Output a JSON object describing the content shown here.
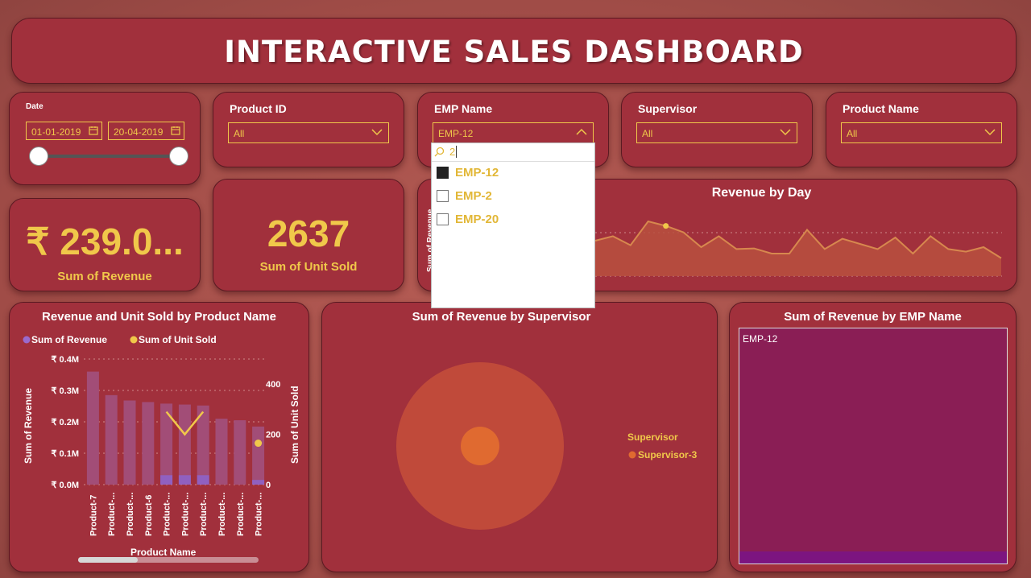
{
  "header": {
    "title": "INTERACTIVE SALES DASHBOARD"
  },
  "date_slicer": {
    "title": "Date",
    "start": "01-01-2019",
    "end": "20-04-2019",
    "range": [
      0.0,
      1.0
    ]
  },
  "slicers": [
    {
      "title": "Product ID",
      "value": "All"
    },
    {
      "title": "EMP Name",
      "value": "EMP-12"
    },
    {
      "title": "Supervisor",
      "value": "All"
    },
    {
      "title": "Product Name",
      "value": "All"
    }
  ],
  "emp_dropdown": {
    "search_value": "2",
    "options": [
      {
        "label": "EMP-12",
        "checked": true
      },
      {
        "label": "EMP-2",
        "checked": false
      },
      {
        "label": "EMP-20",
        "checked": false
      }
    ]
  },
  "kpis": {
    "revenue": {
      "value": "₹ 239.0...",
      "label": "Sum of Revenue"
    },
    "units": {
      "value": "2637",
      "label": "Sum of Unit Sold"
    }
  },
  "revenue_by_day": {
    "title": "Revenue by Day",
    "ylabel": "Sum of Revenue",
    "chart_data": {
      "type": "area",
      "title": "Revenue by Day",
      "ylabel": "Sum of Revenue",
      "values": [
        0.55,
        0.62,
        0.48,
        0.85,
        0.78,
        0.68,
        0.45,
        0.62,
        0.42,
        0.43,
        0.35,
        0.35,
        0.72,
        0.42,
        0.58,
        0.5,
        0.42,
        0.6,
        0.35,
        0.62,
        0.42,
        0.38,
        0.45,
        0.28
      ]
    }
  },
  "product_chart": {
    "title": "Revenue and Unit Sold by Product Name",
    "legend": [
      "Sum of Revenue",
      "Sum of Unit Sold"
    ],
    "ylabel_left": "Sum of Revenue",
    "ylabel_right": "Sum of Unit Sold",
    "xlabel": "Product Name",
    "left_ticks": [
      "₹ 0.4M",
      "₹ 0.3M",
      "₹ 0.2M",
      "₹ 0.1M",
      "₹ 0.0M"
    ],
    "right_ticks": [
      "400",
      "200",
      "0"
    ],
    "chart_data": {
      "type": "bar",
      "title": "Revenue and Unit Sold by Product Name",
      "categories": [
        "Product-7",
        "Product-...",
        "Product-...",
        "Product-6",
        "Product-...",
        "Product-...",
        "Product-...",
        "Product-...",
        "Product-...",
        "Product-..."
      ],
      "ylim": [
        0,
        0.4
      ],
      "ylim_right": [
        0,
        500
      ],
      "series": [
        {
          "name": "Sum of Revenue",
          "values": [
            0.36,
            0.285,
            0.268,
            0.263,
            0.258,
            0.255,
            0.252,
            0.21,
            0.205,
            0.185
          ]
        },
        {
          "name": "Sum of Unit Sold",
          "values": [
            null,
            null,
            null,
            null,
            290,
            200,
            290,
            null,
            null,
            165
          ]
        }
      ],
      "selected_revenue": [
        0,
        0,
        0,
        0,
        0.03,
        0.03,
        0.03,
        0,
        0,
        0.015
      ]
    }
  },
  "supervisor_chart": {
    "title": "Sum of Revenue by Supervisor",
    "legend_title": "Supervisor",
    "chart_data": {
      "type": "pie",
      "title": "Sum of Revenue by Supervisor",
      "series": [
        {
          "name": "Supervisor-3",
          "values": [
            239.0
          ]
        }
      ],
      "highlight_fraction": 0.05
    },
    "legend_items": [
      "Supervisor-3"
    ]
  },
  "emp_chart": {
    "title": "Sum of Revenue by EMP Name",
    "chart_data": {
      "type": "heatmap",
      "title": "Sum of Revenue by EMP Name",
      "categories": [
        "EMP-12"
      ]
    },
    "tile_label": "EMP-12"
  },
  "colors": {
    "bg": "#a04c47",
    "card": "#a1303c",
    "accent": "#f0c84a",
    "revenue_bar": "#a24d77",
    "selected_bar": "#9060c0",
    "line": "#d7884e",
    "pie_outer": "#c04a3a",
    "pie_inner": "#e06a30",
    "treemap": "#8a1e55",
    "treemap_sel": "#7c1580"
  }
}
